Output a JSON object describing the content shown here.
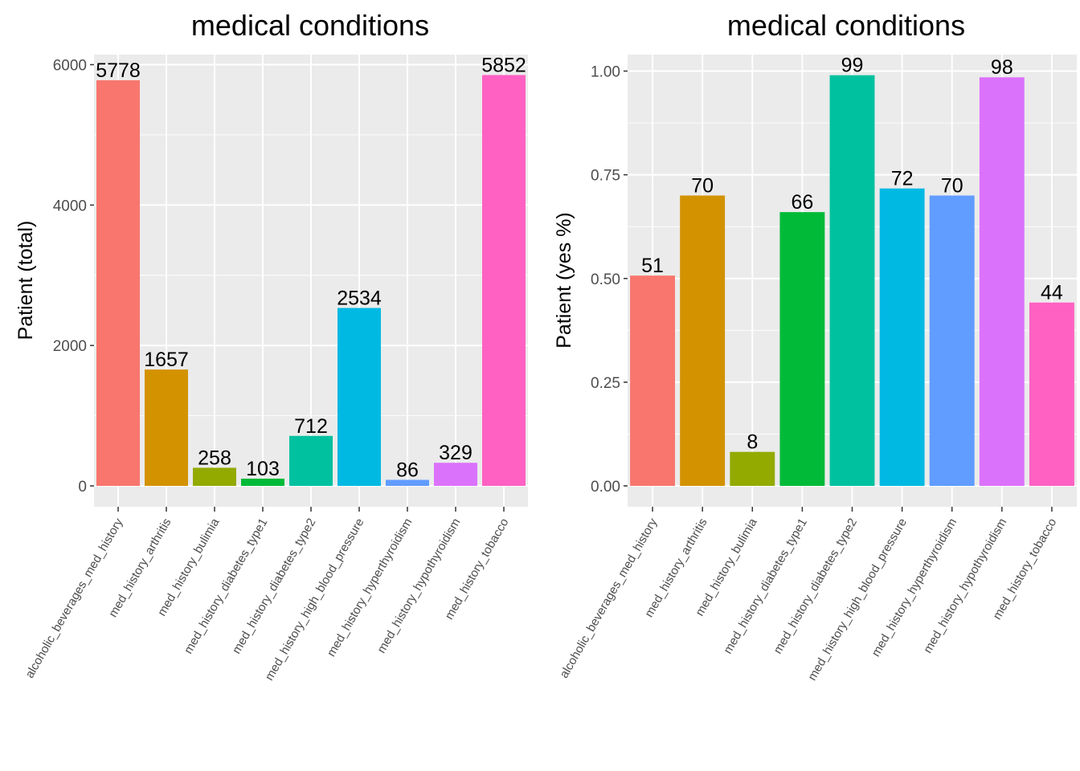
{
  "chart_data": [
    {
      "type": "bar",
      "title": "medical conditions",
      "xlabel": "",
      "ylabel": "Patient (total)",
      "ylim": [
        0,
        6000
      ],
      "yticks": [
        "0",
        "2000",
        "4000",
        "6000"
      ],
      "categories": [
        "alcoholic_beverages_med_history",
        "med_history_arthritis",
        "med_history_bulimia",
        "med_history_diabetes_type1",
        "med_history_diabetes_type2",
        "med_history_high_blood_pressure",
        "med_history_hyperthyroidism",
        "med_history_hypothyroidism",
        "med_history_tobacco"
      ],
      "values": [
        5778,
        1657,
        258,
        103,
        712,
        2534,
        86,
        329,
        5852
      ],
      "labels": [
        "5778",
        "1657",
        "258",
        "103",
        "712",
        "2534",
        "86",
        "329",
        "5852"
      ],
      "colors": [
        "#F8766D",
        "#D39200",
        "#93AA00",
        "#00BA38",
        "#00C19F",
        "#00B9E3",
        "#619CFF",
        "#DB72FB",
        "#FF61C3"
      ],
      "grid": true,
      "legend": "none"
    },
    {
      "type": "bar",
      "title": "medical conditions",
      "xlabel": "",
      "ylabel": "Patient (yes %)",
      "ylim": [
        0,
        1.0
      ],
      "yticks": [
        "0.00",
        "0.25",
        "0.50",
        "0.75",
        "1.00"
      ],
      "categories": [
        "alcoholic_beverages_med_history",
        "med_history_arthritis",
        "med_history_bulimia",
        "med_history_diabetes_type1",
        "med_history_diabetes_type2",
        "med_history_high_blood_pressure",
        "med_history_hyperthyroidism",
        "med_history_hypothyroidism",
        "med_history_tobacco"
      ],
      "values": [
        0.507,
        0.7,
        0.082,
        0.66,
        0.99,
        0.717,
        0.7,
        0.985,
        0.442
      ],
      "labels": [
        "51",
        "70",
        "8",
        "66",
        "99",
        "72",
        "70",
        "98",
        "44"
      ],
      "colors": [
        "#F8766D",
        "#D39200",
        "#93AA00",
        "#00BA38",
        "#00C19F",
        "#00B9E3",
        "#619CFF",
        "#DB72FB",
        "#FF61C3"
      ],
      "grid": true,
      "legend": "none"
    }
  ]
}
